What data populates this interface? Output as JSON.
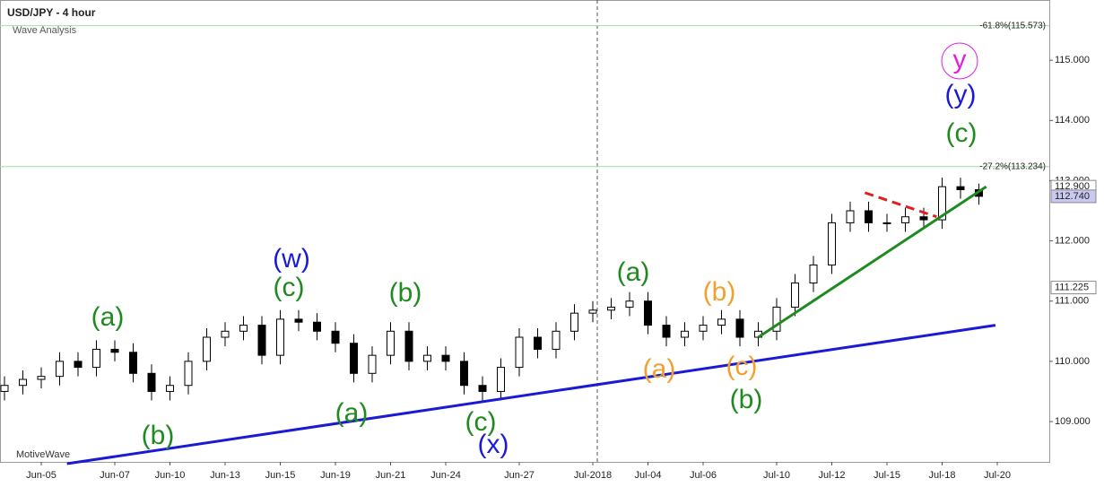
{
  "chart_data": {
    "type": "candlestick",
    "title": "USD/JPY - 4 hour",
    "subtitle": "Wave Analysis",
    "watermark": "MotiveWave",
    "categories": [
      null,
      null,
      "Jun-05",
      null,
      null,
      null,
      "Jun-07",
      null,
      null,
      "Jun-10",
      null,
      null,
      "Jun-13",
      null,
      null,
      "Jun-15",
      null,
      null,
      "Jun-19",
      null,
      null,
      "Jun-21",
      null,
      null,
      "Jun-24",
      null,
      null,
      null,
      "Jun-27",
      null,
      null,
      null,
      "Jul-2018",
      null,
      null,
      "Jul-04",
      null,
      null,
      "Jul-06",
      null,
      null,
      null,
      "Jul-10",
      null,
      null,
      "Jul-12",
      null,
      null,
      "Jul-15",
      null,
      null,
      "Jul-18",
      null,
      null,
      "Jul-20",
      null
    ],
    "open": [
      109.5,
      109.6,
      109.7,
      109.75,
      110.0,
      109.9,
      110.2,
      110.15,
      109.8,
      109.5,
      109.6,
      110.0,
      110.4,
      110.5,
      110.6,
      110.1,
      110.7,
      110.65,
      110.5,
      110.3,
      109.8,
      110.1,
      110.5,
      110.0,
      110.1,
      110.0,
      109.6,
      109.5,
      109.9,
      110.4,
      110.2,
      110.5,
      110.8,
      110.85,
      110.9,
      111.0,
      110.6,
      110.4,
      110.5,
      110.6,
      110.7,
      110.4,
      110.5,
      110.9,
      111.3,
      111.6,
      112.3,
      112.5,
      112.3,
      112.3,
      112.4,
      112.35,
      112.9,
      112.85,
      null,
      null
    ],
    "high": [
      109.75,
      109.85,
      109.9,
      110.15,
      110.15,
      110.35,
      110.35,
      110.3,
      109.95,
      109.75,
      110.15,
      110.55,
      110.65,
      110.75,
      110.75,
      110.85,
      110.85,
      110.8,
      110.65,
      110.45,
      110.25,
      110.65,
      110.65,
      110.25,
      110.25,
      110.15,
      109.75,
      110.05,
      110.55,
      110.55,
      110.65,
      110.95,
      111.0,
      111.05,
      111.15,
      111.15,
      110.75,
      110.65,
      110.75,
      110.85,
      110.85,
      110.65,
      111.05,
      111.45,
      111.75,
      112.45,
      112.65,
      112.65,
      112.45,
      112.55,
      112.55,
      113.05,
      113.05,
      112.95,
      null,
      null
    ],
    "low": [
      109.35,
      109.45,
      109.55,
      109.6,
      109.75,
      109.75,
      110.0,
      109.65,
      109.35,
      109.35,
      109.45,
      109.85,
      110.25,
      110.35,
      109.95,
      109.95,
      110.5,
      110.35,
      110.15,
      109.65,
      109.65,
      109.95,
      109.85,
      109.85,
      109.85,
      109.45,
      109.35,
      109.35,
      109.75,
      110.05,
      110.05,
      110.35,
      110.65,
      110.7,
      110.75,
      110.45,
      110.25,
      110.25,
      110.35,
      110.45,
      110.25,
      110.25,
      110.35,
      110.75,
      111.15,
      111.45,
      112.15,
      112.15,
      112.15,
      112.15,
      112.2,
      112.2,
      112.7,
      112.6,
      null,
      null
    ],
    "close": [
      109.6,
      109.7,
      109.75,
      110.0,
      109.9,
      110.2,
      110.15,
      109.8,
      109.5,
      109.6,
      110.0,
      110.4,
      110.5,
      110.6,
      110.1,
      110.7,
      110.65,
      110.5,
      110.3,
      109.8,
      110.1,
      110.5,
      110.0,
      110.1,
      110.0,
      109.6,
      109.5,
      109.9,
      110.4,
      110.2,
      110.5,
      110.8,
      110.85,
      110.9,
      111.0,
      110.6,
      110.4,
      110.5,
      110.6,
      110.7,
      110.4,
      110.5,
      110.9,
      111.3,
      111.6,
      112.3,
      112.5,
      112.3,
      112.3,
      112.4,
      112.35,
      112.9,
      112.85,
      112.74,
      null,
      null
    ],
    "ylim": [
      108.33,
      116.0
    ],
    "yticks": [
      {
        "value": 109,
        "label": "109.000"
      },
      {
        "value": 110,
        "label": "110.000"
      },
      {
        "value": 111,
        "label": "111.000"
      },
      {
        "value": 112,
        "label": "112.000"
      },
      {
        "value": 113,
        "label": "113.000"
      },
      {
        "value": 114,
        "label": "114.000"
      },
      {
        "value": 115,
        "label": "115.000"
      }
    ],
    "fib_levels": [
      {
        "value": 115.573,
        "label": "-61.8%(115.573)"
      },
      {
        "value": 113.234,
        "label": "-27.2%(113.234)"
      }
    ],
    "price_tags": [
      {
        "value": 112.9,
        "label": "112.900"
      },
      {
        "value": 112.74,
        "label": "112.740"
      },
      {
        "value": 111.225,
        "label": "111.225"
      }
    ],
    "trendlines": [
      {
        "color": "#1a1ad6",
        "x": [
          3.4,
          53.9
        ],
        "y": [
          108.3,
          110.6
        ]
      },
      {
        "color": "#1f8a1f",
        "x": [
          41,
          53.4
        ],
        "y": [
          110.4,
          112.9
        ]
      },
      {
        "color": "#e02020",
        "x": [
          46.8,
          50.7
        ],
        "y": [
          112.8,
          112.4
        ]
      }
    ],
    "wave_labels": [
      "(a)",
      "(b)",
      "(c)",
      "(w)",
      "(a)",
      "(b)",
      "(c)",
      "(x)",
      "(a)",
      "(b)",
      "(a)",
      "(c)",
      "(b)",
      "(c)",
      "(y)",
      "y"
    ],
    "up_color": "#ffffff",
    "down_color": "#000000"
  }
}
